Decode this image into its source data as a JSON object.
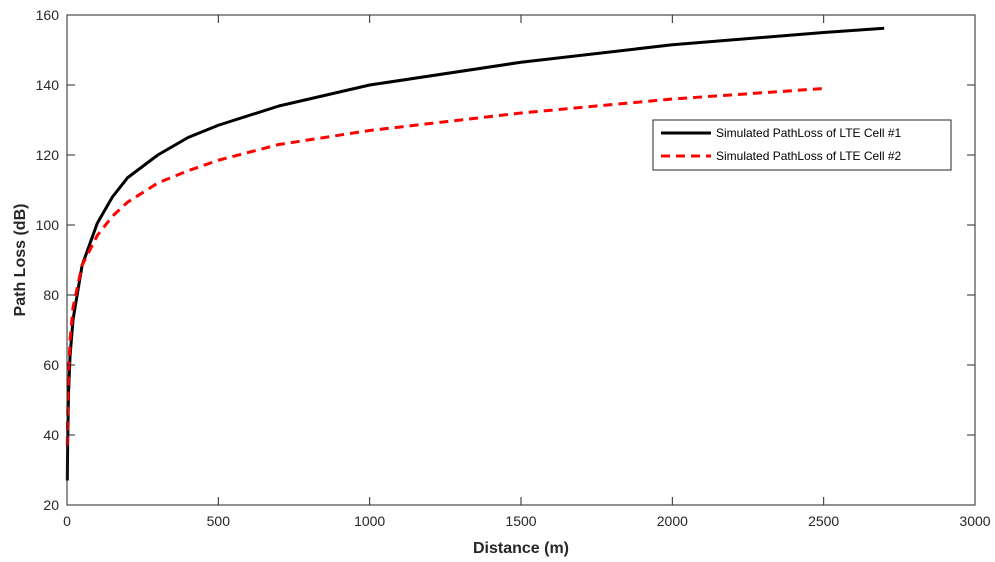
{
  "chart_data": {
    "type": "line",
    "xlabel": "Distance (m)",
    "ylabel": "Path Loss (dB)",
    "xlim": [
      0,
      3000
    ],
    "ylim": [
      20,
      160
    ],
    "xticks": [
      0,
      500,
      1000,
      1500,
      2000,
      2500,
      3000
    ],
    "yticks": [
      20,
      40,
      60,
      80,
      100,
      120,
      140,
      160
    ],
    "grid": false,
    "legend_position": "top-right",
    "series": [
      {
        "name": "Simulated PathLoss of LTE Cell #1",
        "color": "#000000",
        "style": "solid",
        "x": [
          1,
          2,
          5,
          10,
          20,
          50,
          100,
          150,
          200,
          300,
          400,
          500,
          700,
          1000,
          1500,
          2000,
          2500,
          2700
        ],
        "y": [
          27,
          37,
          52,
          62.5,
          73,
          88.5,
          100.5,
          108,
          113.5,
          120,
          125,
          128.5,
          134,
          140,
          146.5,
          151.5,
          155,
          156.2
        ]
      },
      {
        "name": "Simulated PathLoss of LTE Cell #2",
        "color": "#ff0000",
        "style": "dashed",
        "x": [
          1,
          2,
          5,
          10,
          20,
          50,
          100,
          150,
          200,
          300,
          400,
          500,
          700,
          1000,
          1500,
          2000,
          2500
        ],
        "y": [
          37,
          45,
          57,
          67,
          76.5,
          88.5,
          97,
          102.5,
          106.5,
          112,
          115.5,
          118.5,
          123,
          127,
          132,
          136,
          139
        ]
      }
    ]
  }
}
